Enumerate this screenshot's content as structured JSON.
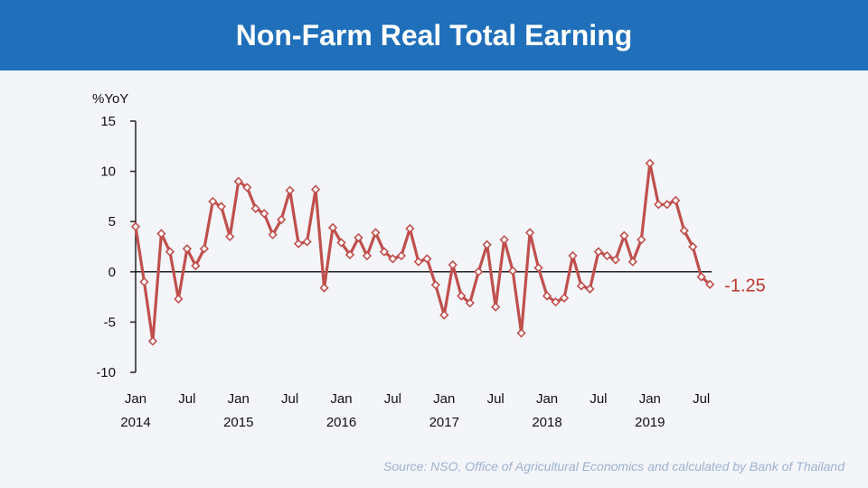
{
  "header": {
    "title": "Non-Farm Real Total Earning"
  },
  "source_note": "Source: NSO, Office of Agricultural Economics and calculated by Bank of Thailand",
  "colors": {
    "header": "#1f6fba",
    "line": "#c0504d",
    "marker_fill": "#ffffff",
    "axis": "#222222",
    "source": "#9eb2cf"
  },
  "chart_data": {
    "type": "line",
    "title": "",
    "ylabel": "%YoY",
    "ylim": [
      -10,
      15
    ],
    "yticks": [
      -10,
      -5,
      0,
      5,
      10,
      15
    ],
    "xtick_labels": [
      {
        "month": "Jan",
        "year": "2014"
      },
      {
        "month": "Jul",
        "year": ""
      },
      {
        "month": "Jan",
        "year": "2015"
      },
      {
        "month": "Jul",
        "year": ""
      },
      {
        "month": "Jan",
        "year": "2016"
      },
      {
        "month": "Jul",
        "year": ""
      },
      {
        "month": "Jan",
        "year": "2017"
      },
      {
        "month": "Jul",
        "year": ""
      },
      {
        "month": "Jan",
        "year": "2018"
      },
      {
        "month": "Jul",
        "year": ""
      },
      {
        "month": "Jan",
        "year": "2019"
      },
      {
        "month": "Jul",
        "year": ""
      }
    ],
    "start": "Jan 2014",
    "end": "Aug 2019",
    "last_value_label": "-1.25",
    "series": [
      {
        "values": [
          4.5,
          -1.0,
          -6.9,
          3.8,
          2.0,
          -2.7,
          2.3,
          0.6,
          2.3,
          7.0,
          6.5,
          3.5,
          9.0,
          8.4,
          6.3,
          5.8,
          3.7,
          5.2,
          8.1,
          2.8,
          3.0,
          8.2,
          -1.6,
          4.4,
          2.9,
          1.7,
          3.4,
          1.6,
          3.9,
          2.0,
          1.3,
          1.6,
          4.3,
          1.0,
          1.3,
          -1.3,
          -4.3,
          0.7,
          -2.4,
          -3.1,
          0.0,
          2.7,
          -3.5,
          3.2,
          0.1,
          -6.1,
          3.9,
          0.4,
          -2.4,
          -3.0,
          -2.6,
          1.6,
          -1.4,
          -1.7,
          2.0,
          1.6,
          1.2,
          3.6,
          1.0,
          3.2,
          10.8,
          6.7,
          6.7,
          7.1,
          4.1,
          2.5,
          -0.5,
          -1.25
        ]
      }
    ]
  }
}
